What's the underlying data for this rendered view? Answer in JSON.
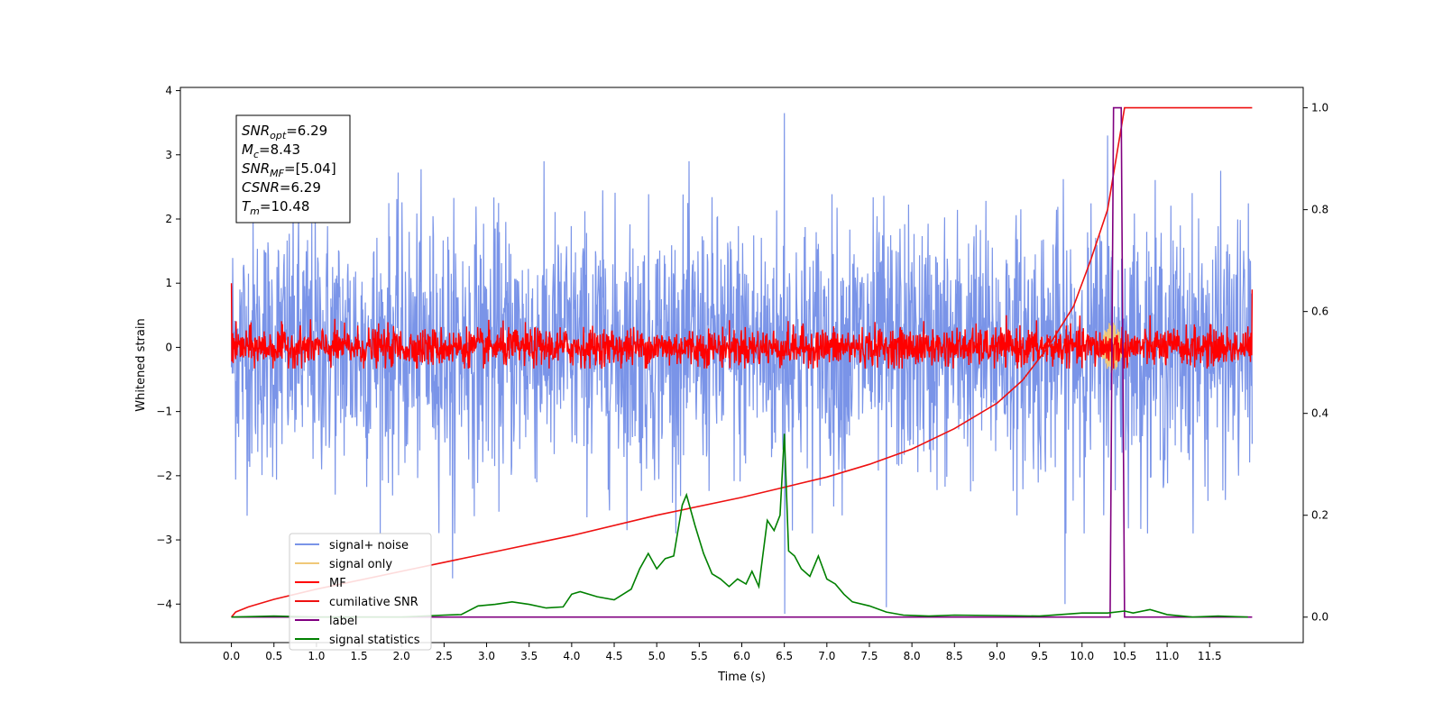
{
  "chart_data": {
    "type": "line",
    "xlabel": "Time (s)",
    "ylabel": "Whitened strain",
    "xlim": [
      -0.6,
      12.6
    ],
    "ylim": [
      -4.6,
      4.05
    ],
    "y2lim": [
      -0.05,
      1.04
    ],
    "x_ticks": [
      0.0,
      0.5,
      1.0,
      1.5,
      2.0,
      2.5,
      3.0,
      3.5,
      4.0,
      4.5,
      5.0,
      5.5,
      6.0,
      6.5,
      7.0,
      7.5,
      8.0,
      8.5,
      9.0,
      9.5,
      10.0,
      10.5,
      11.0,
      11.5
    ],
    "x_tick_labels": [
      "0.0",
      "0.5",
      "1.0",
      "1.5",
      "2.0",
      "2.5",
      "3.0",
      "3.5",
      "4.0",
      "4.5",
      "5.0",
      "5.5",
      "6.0",
      "6.5",
      "7.0",
      "7.5",
      "8.0",
      "8.5",
      "9.0",
      "9.5",
      "10.0",
      "10.5",
      "11.0",
      "11.5"
    ],
    "y_ticks": [
      4,
      3,
      2,
      1,
      0,
      -1,
      -2,
      -3,
      -4
    ],
    "y_tick_labels": [
      "4",
      "3",
      "2",
      "1",
      "0",
      "−1",
      "−2",
      "−3",
      "−4"
    ],
    "y2_ticks": [
      1.0,
      0.8,
      0.6,
      0.4,
      0.2,
      0.0
    ],
    "y2_tick_labels": [
      "1.0",
      "0.8",
      "0.6",
      "0.4",
      "0.2",
      "0.0"
    ],
    "colors": {
      "signal_noise": "#7a94e8",
      "signal_only": "#f0c878",
      "mf": "#ff0000",
      "cumulative_snr": "#ee1111",
      "label": "#800080",
      "signal_statistics": "#008000"
    },
    "series": [
      {
        "name": "signal+ noise",
        "key": "signal_noise",
        "x_range": [
          0.0,
          12.0
        ],
        "typical_amplitude": 1.7,
        "peak_max": 3.65,
        "peak_min": -4.15
      },
      {
        "name": "signal only",
        "key": "signal_only",
        "x_range": [
          10.2,
          10.5
        ],
        "peak_amplitude": 0.4
      },
      {
        "name": "MF",
        "key": "mf",
        "x_range": [
          0.0,
          12.0
        ],
        "typical_amplitude": 0.3,
        "start_value": 1.0,
        "end_value": 0.9
      },
      {
        "name": "cumilative SNR",
        "key": "cumulative_snr",
        "axis": "right",
        "x": [
          0.0,
          0.05,
          0.2,
          0.5,
          1.0,
          2.0,
          3.0,
          4.0,
          5.0,
          6.0,
          6.5,
          7.0,
          7.5,
          8.0,
          8.5,
          9.0,
          9.3,
          9.6,
          9.9,
          10.1,
          10.3,
          10.4,
          10.5,
          12.0
        ],
        "y": [
          0.0,
          0.01,
          0.02,
          0.035,
          0.055,
          0.09,
          0.125,
          0.16,
          0.2,
          0.235,
          0.255,
          0.275,
          0.3,
          0.33,
          0.37,
          0.42,
          0.465,
          0.53,
          0.61,
          0.7,
          0.8,
          0.9,
          1.0,
          1.0
        ]
      },
      {
        "name": "label",
        "key": "label",
        "axis": "right",
        "x": [
          0.0,
          10.33,
          10.37,
          10.46,
          10.5,
          12.0
        ],
        "y": [
          0.0,
          0.0,
          1.0,
          1.0,
          0.0,
          0.0
        ]
      },
      {
        "name": "signal statistics",
        "key": "signal_statistics",
        "axis": "right",
        "x": [
          0.0,
          0.5,
          1.0,
          1.5,
          2.0,
          2.5,
          2.7,
          2.9,
          3.1,
          3.3,
          3.5,
          3.7,
          3.9,
          4.0,
          4.1,
          4.3,
          4.5,
          4.7,
          4.8,
          4.9,
          5.0,
          5.1,
          5.2,
          5.3,
          5.35,
          5.45,
          5.55,
          5.65,
          5.75,
          5.85,
          5.95,
          6.05,
          6.12,
          6.2,
          6.3,
          6.38,
          6.45,
          6.5,
          6.55,
          6.62,
          6.7,
          6.8,
          6.9,
          7.0,
          7.1,
          7.2,
          7.3,
          7.5,
          7.7,
          7.9,
          8.2,
          8.5,
          9.0,
          9.5,
          10.0,
          10.3,
          10.5,
          10.6,
          10.8,
          11.0,
          11.3,
          11.6,
          11.95
        ],
        "y": [
          0.0,
          0.002,
          0.0,
          0.0,
          0.0,
          0.004,
          0.005,
          0.022,
          0.025,
          0.03,
          0.025,
          0.018,
          0.02,
          0.045,
          0.05,
          0.04,
          0.034,
          0.055,
          0.095,
          0.125,
          0.095,
          0.115,
          0.12,
          0.22,
          0.24,
          0.18,
          0.125,
          0.085,
          0.075,
          0.06,
          0.075,
          0.065,
          0.09,
          0.06,
          0.19,
          0.17,
          0.2,
          0.36,
          0.13,
          0.12,
          0.095,
          0.08,
          0.12,
          0.075,
          0.065,
          0.045,
          0.03,
          0.022,
          0.01,
          0.004,
          0.002,
          0.004,
          0.003,
          0.002,
          0.008,
          0.008,
          0.012,
          0.008,
          0.015,
          0.005,
          0.0,
          0.002,
          0.0
        ]
      }
    ],
    "annotation": {
      "lines": [
        {
          "main": "SNR",
          "sub": "opt",
          "value": "=6.29"
        },
        {
          "main": "M",
          "sub": "c",
          "value": "=8.43"
        },
        {
          "main": "SNR",
          "sub": "MF",
          "value": "=[5.04]"
        },
        {
          "main": "CSNR",
          "sub": "",
          "value": "=6.29"
        },
        {
          "main": "T",
          "sub": "m",
          "value": "=10.48"
        }
      ]
    },
    "legend": {
      "placement": "lower-left",
      "entries": [
        "signal+ noise",
        "signal only",
        "MF",
        "cumilative SNR",
        "label",
        "signal statistics"
      ]
    }
  }
}
